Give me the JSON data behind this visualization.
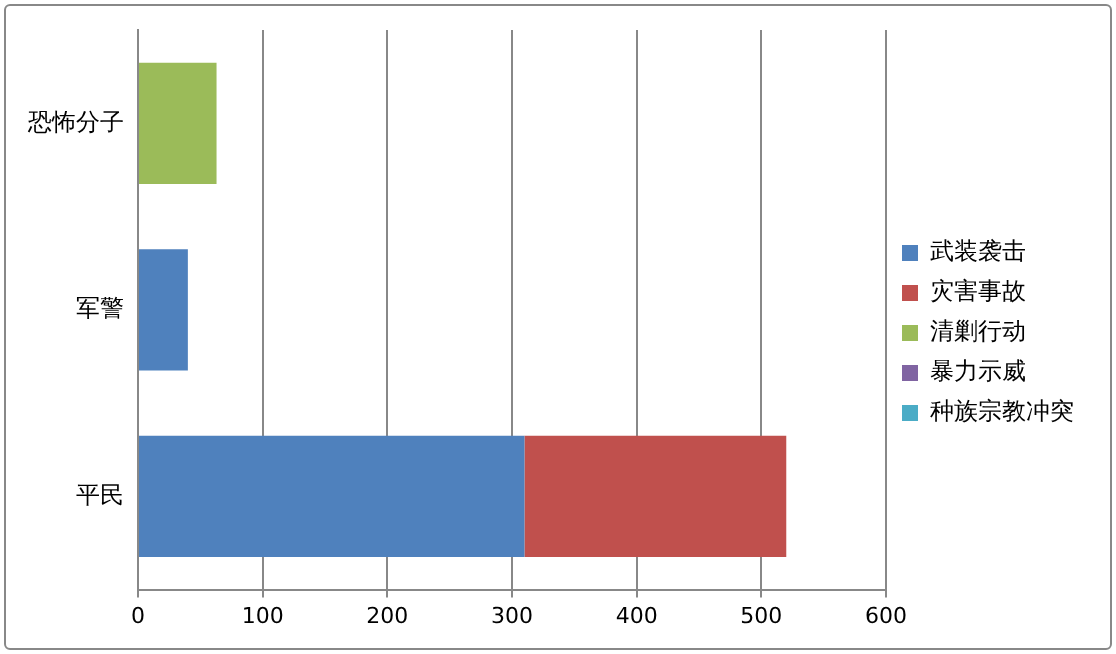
{
  "chart_data": {
    "type": "bar",
    "orientation": "horizontal",
    "stacked": true,
    "categories": [
      "恐怖分子",
      "军警",
      "平民"
    ],
    "series": [
      {
        "name": "武装袭击",
        "color": "#4f81bd",
        "values": [
          0,
          40,
          310
        ]
      },
      {
        "name": "灾害事故",
        "color": "#c0504d",
        "values": [
          0,
          0,
          210
        ]
      },
      {
        "name": "清剿行动",
        "color": "#9bbb59",
        "values": [
          63,
          0,
          0
        ]
      },
      {
        "name": "暴力示威",
        "color": "#8064a2",
        "values": [
          0,
          0,
          0
        ]
      },
      {
        "name": "种族宗教冲突",
        "color": "#4bacc6",
        "values": [
          0,
          0,
          0
        ]
      }
    ],
    "xlim": [
      0,
      600
    ],
    "xticks": [
      0,
      100,
      200,
      300,
      400,
      500,
      600
    ],
    "grid": "x",
    "legend": "right"
  }
}
